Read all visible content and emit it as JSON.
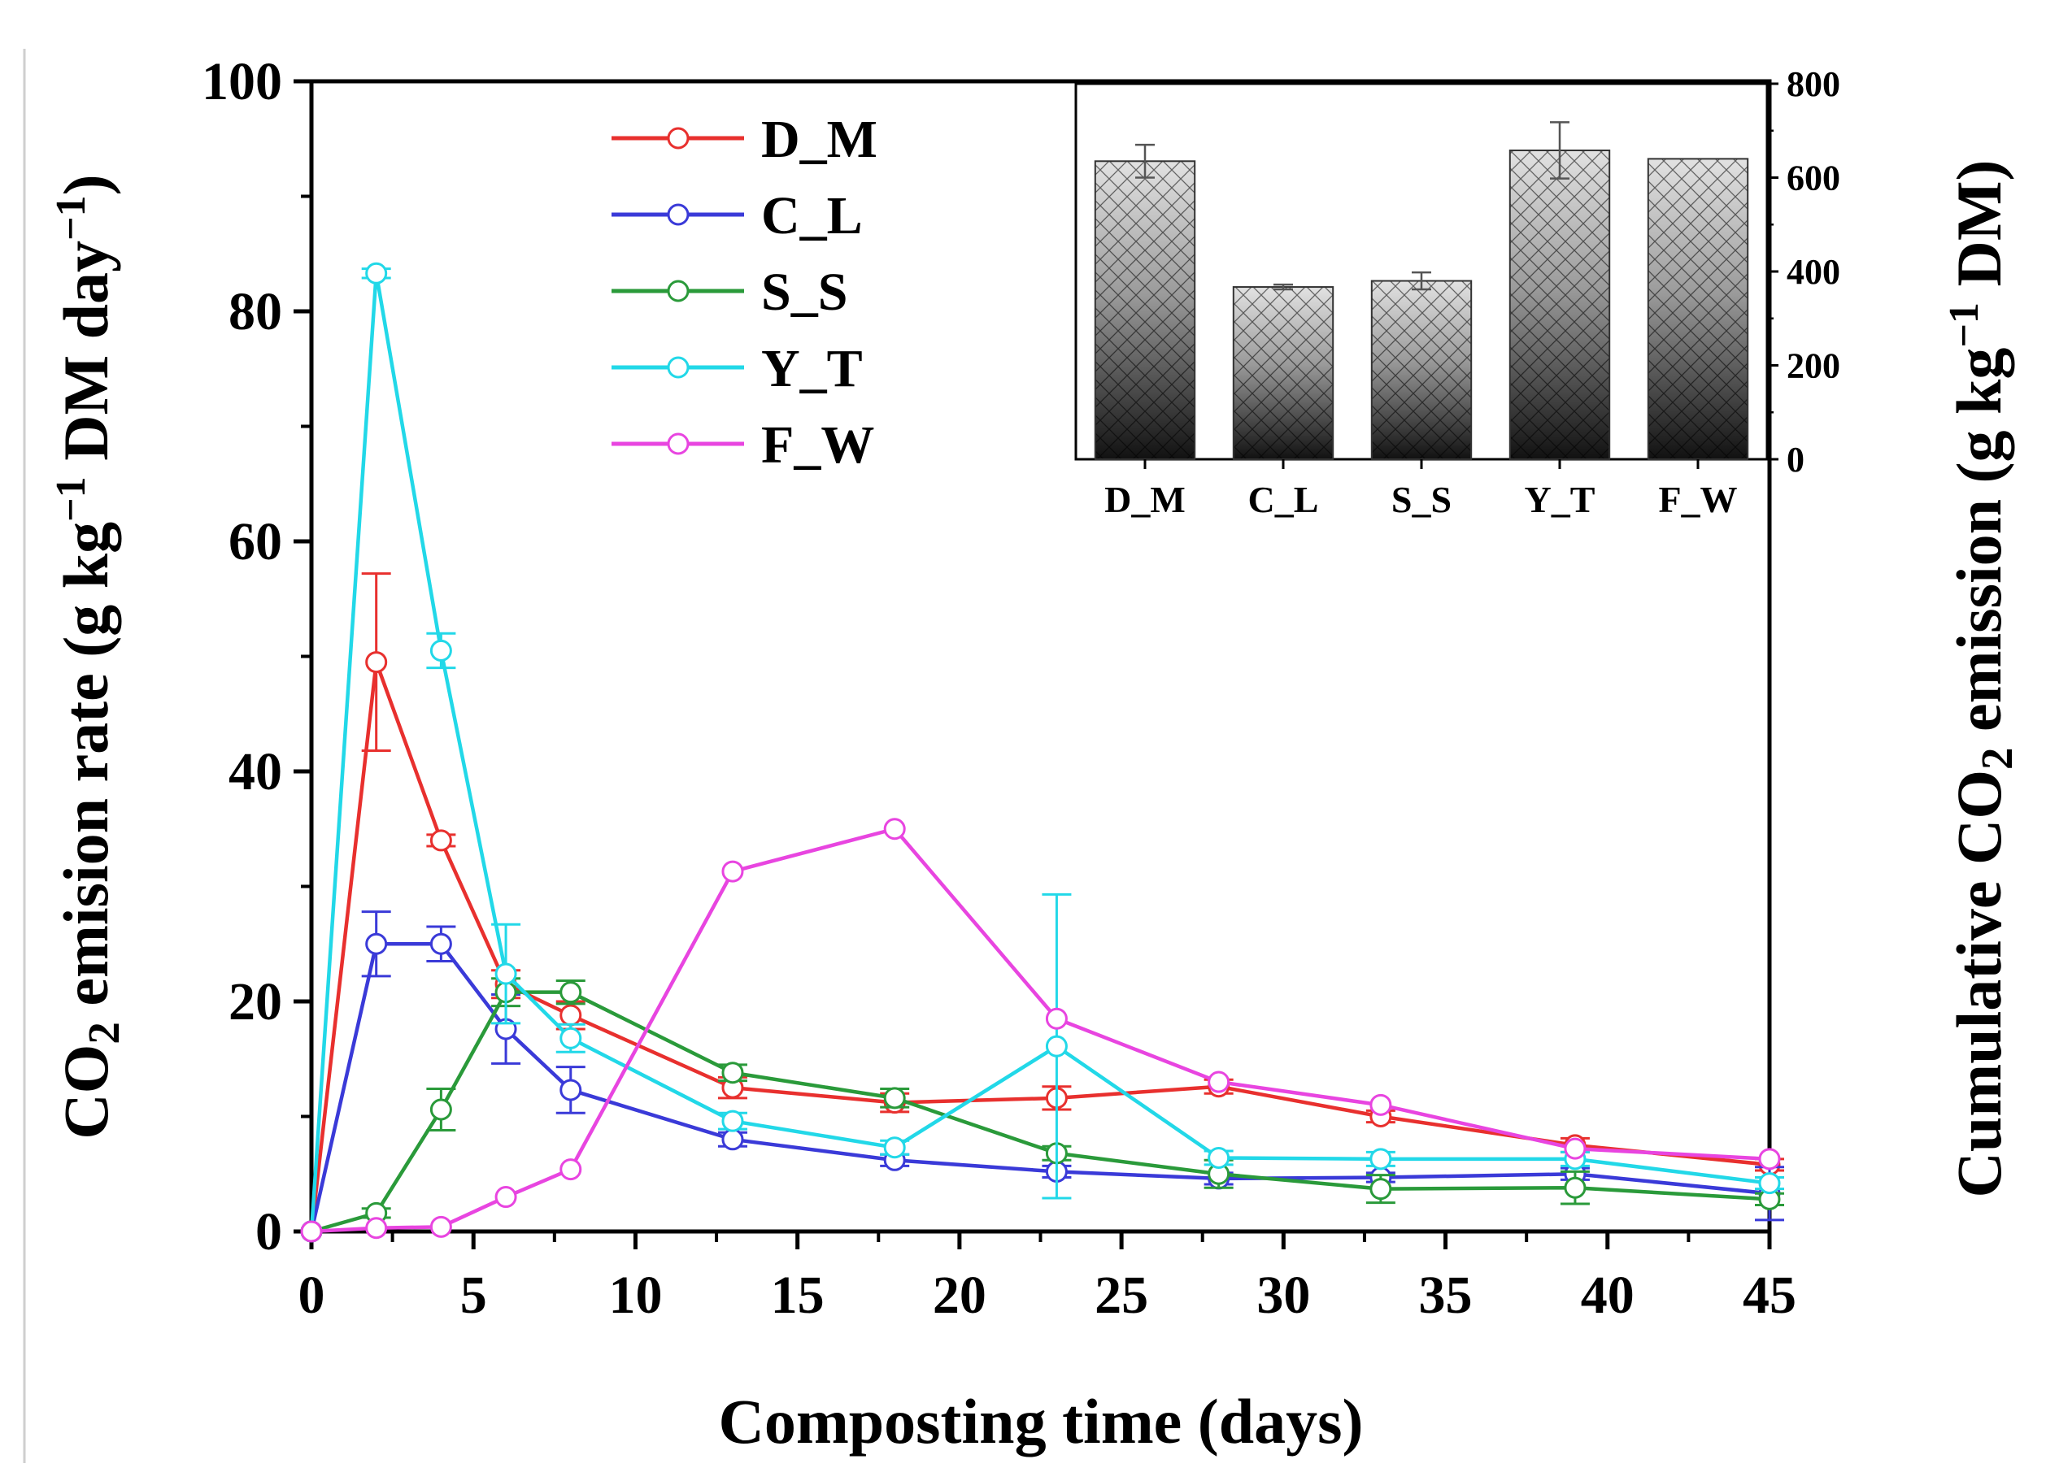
{
  "chart_data": [
    {
      "type": "line",
      "xlabel": "Composting time (days)",
      "ylabel": {
        "prefix": "CO",
        "sub": "2",
        "text": " emision rate (g kg",
        "sup": "−1",
        "suffix": " DM day",
        "sup2": "−1",
        "end": ")"
      },
      "right_label": {
        "prefix": "Cumulative CO",
        "sub": "2",
        "text": " emission (g kg",
        "sup": "−1",
        "suffix": " DM)"
      },
      "xlim": [
        0,
        45
      ],
      "ylim": [
        0,
        100
      ],
      "x_ticks": [
        "0",
        "5",
        "10",
        "15",
        "20",
        "25",
        "30",
        "35",
        "40",
        "45"
      ],
      "y_ticks": [
        "0",
        "20",
        "40",
        "60",
        "80",
        "100"
      ],
      "x": [
        0,
        2,
        4,
        6,
        8,
        13,
        18,
        23,
        28,
        33,
        39,
        45
      ],
      "legend_position": "top-left",
      "series": [
        {
          "name": "D_M",
          "color": "#e8302e",
          "values": [
            0,
            49.5,
            34,
            21.5,
            18.8,
            12.5,
            11.2,
            11.6,
            12.6,
            10,
            7.5,
            5.8
          ],
          "errors": [
            0,
            7.7,
            0.5,
            1.2,
            1.2,
            0.9,
            0.8,
            1.0,
            0.6,
            0.5,
            0.6,
            0.5
          ]
        },
        {
          "name": "C_L",
          "color": "#3a3ad8",
          "values": [
            0,
            25,
            25,
            17.6,
            12.3,
            8,
            6.2,
            5.2,
            4.6,
            4.7,
            5,
            3.3
          ],
          "errors": [
            0,
            2.8,
            1.5,
            3.0,
            2.0,
            0.6,
            0.5,
            0.5,
            0.5,
            0.4,
            0.5,
            2.3
          ]
        },
        {
          "name": "S_S",
          "color": "#2a9a3a",
          "values": [
            0,
            1.6,
            10.6,
            20.8,
            20.8,
            13.8,
            11.6,
            6.8,
            5,
            3.7,
            3.8,
            2.8
          ],
          "errors": [
            0,
            0.4,
            1.8,
            1.2,
            1.0,
            0.7,
            0.8,
            0.6,
            1.2,
            1.2,
            1.4,
            0.5
          ]
        },
        {
          "name": "Y_T",
          "color": "#22d8e8",
          "values": [
            0,
            83.3,
            50.5,
            22.4,
            16.8,
            9.6,
            7.3,
            16.1,
            6.4,
            6.3,
            6.3,
            4.2
          ],
          "errors": [
            0,
            0.4,
            1.5,
            4.3,
            1.2,
            0.7,
            0.6,
            13.2,
            0.6,
            0.6,
            0.6,
            0.5
          ]
        },
        {
          "name": "F_W",
          "color": "#e845e0",
          "values": [
            0,
            0.3,
            0.4,
            3,
            5.4,
            31.3,
            35,
            18.5,
            13,
            11,
            7.2,
            6.3
          ],
          "errors": [
            0,
            0,
            0,
            0,
            0,
            0,
            0,
            0,
            0,
            0,
            0,
            0
          ]
        }
      ]
    },
    {
      "type": "bar",
      "categories": [
        "D_M",
        "C_L",
        "S_S",
        "Y_T",
        "F_W"
      ],
      "values": [
        635,
        367,
        380,
        658,
        640
      ],
      "errors": [
        35,
        5,
        18,
        60,
        0
      ],
      "ylim": [
        0,
        800
      ],
      "y_ticks": [
        "0",
        "200",
        "400",
        "600",
        "800"
      ],
      "bar_pattern": "crosshatch, gradient light-gray to black"
    }
  ]
}
